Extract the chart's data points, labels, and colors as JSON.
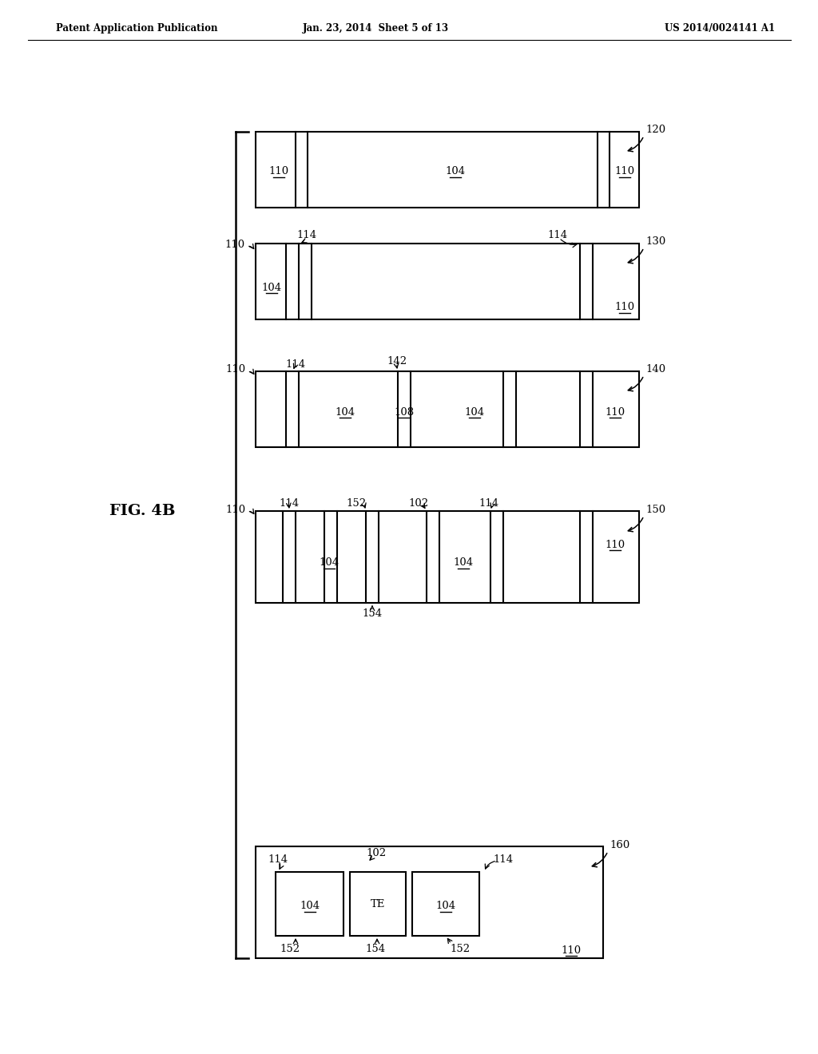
{
  "header_left": "Patent Application Publication",
  "header_mid": "Jan. 23, 2014  Sheet 5 of 13",
  "header_right": "US 2014/0024141 A1",
  "fig_label": "FIG. 4B",
  "background": "#ffffff",
  "line_color": "#000000"
}
